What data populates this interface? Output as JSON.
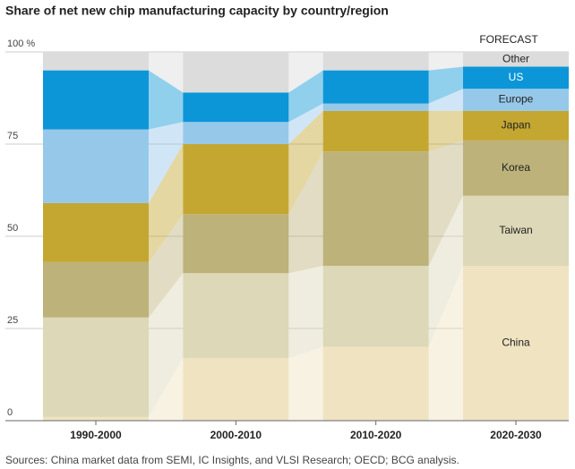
{
  "chart_data": {
    "type": "stacked-bar-ribbon",
    "title": "Share of net new chip manufacturing capacity by country/region",
    "annotation": "FORECAST",
    "source": "Sources: China market data from SEMI, IC Insights, and VLSI Research; OECD; BCG analysis.",
    "categories": [
      "1990-2000",
      "2000-2010",
      "2010-2020",
      "2020-2030"
    ],
    "ylim": [
      0,
      100
    ],
    "yticks": [
      0,
      25,
      50,
      75,
      {
        "value": 100,
        "label": "100 %"
      }
    ],
    "grid": true,
    "series": [
      {
        "name": "China",
        "color": "#efe3c1",
        "values": [
          1,
          17,
          20,
          42
        ]
      },
      {
        "name": "Taiwan",
        "color": "#dcd8b8",
        "values": [
          27,
          23,
          22,
          19
        ]
      },
      {
        "name": "Korea",
        "color": "#bcb27a",
        "values": [
          15,
          16,
          31,
          15
        ]
      },
      {
        "name": "Japan",
        "color": "#c4a731",
        "values": [
          16,
          19,
          11,
          8
        ]
      },
      {
        "name": "Europe",
        "color": "#96c8ea",
        "values": [
          20,
          6,
          2,
          6
        ]
      },
      {
        "name": "US",
        "color": "#0c96d8",
        "values": [
          16,
          8,
          9,
          6
        ]
      },
      {
        "name": "Other",
        "color": "#dcdcdc",
        "values": [
          5,
          11,
          5,
          4
        ]
      }
    ]
  }
}
